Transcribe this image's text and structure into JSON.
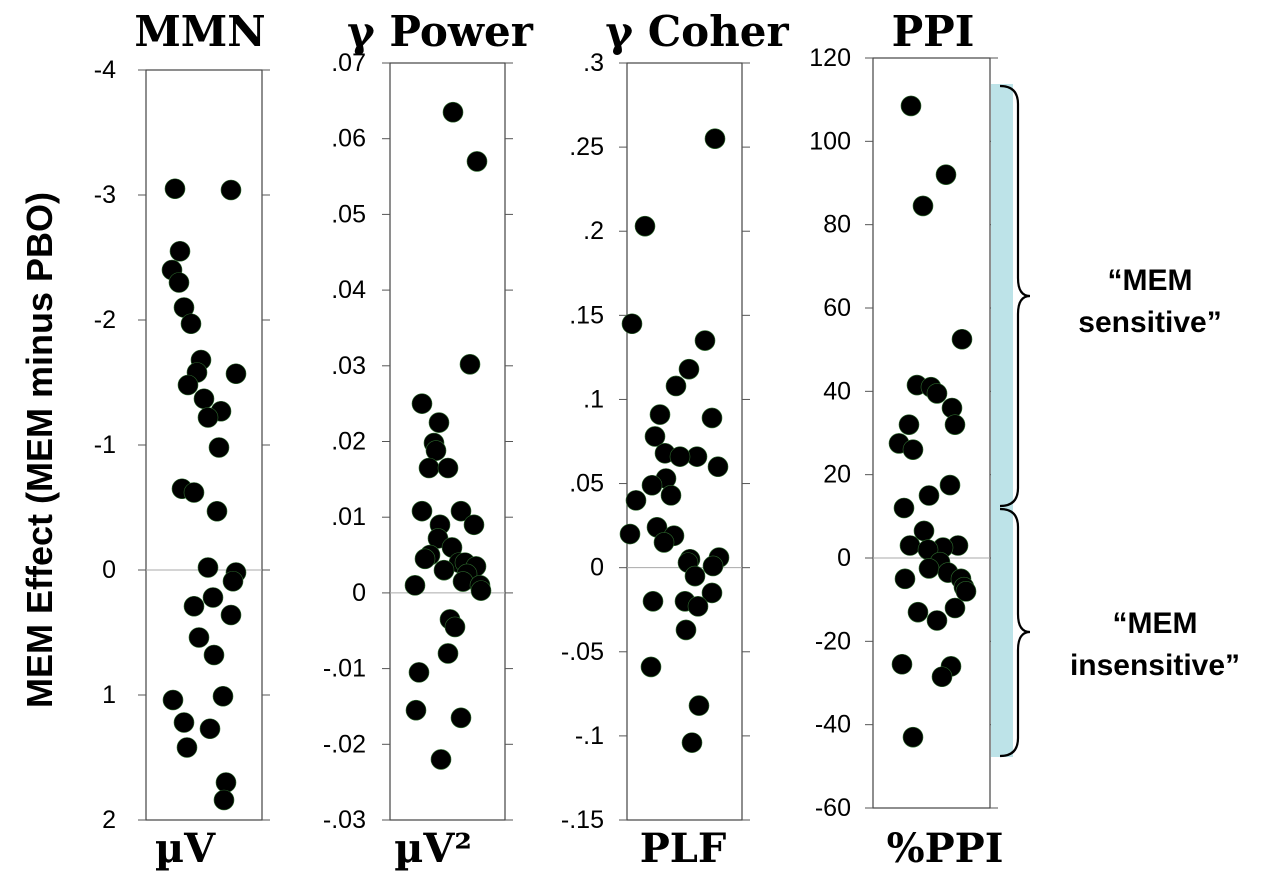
{
  "ylabel": "MEM Effect (MEM minus PBO)",
  "annotations": {
    "sensitive_line1": "“MEM",
    "sensitive_line2": "sensitive”",
    "insensitive_line1": "“MEM",
    "insensitive_line2": "insensitive”",
    "band_color": "#bde3e8"
  },
  "chart_data": [
    {
      "type": "scatter",
      "title": "MMN",
      "xlabel": "µV",
      "ylim": [
        2,
        -4
      ],
      "inverted_y": true,
      "yticks": [
        -4,
        -3,
        -2,
        -1,
        0,
        1,
        2
      ],
      "ytick_labels": [
        "-4",
        "-3",
        "-2",
        "-1",
        "0",
        "1",
        "2"
      ],
      "values": [
        -3.05,
        -3.04,
        -2.55,
        -2.4,
        -2.3,
        -2.1,
        -1.97,
        -1.68,
        -1.58,
        -1.57,
        -1.48,
        -1.37,
        -1.27,
        -1.22,
        -0.98,
        -0.65,
        -0.62,
        -0.47,
        0.02,
        -0.02,
        0.09,
        0.22,
        0.29,
        0.36,
        0.54,
        0.68,
        1.01,
        1.04,
        1.22,
        1.27,
        1.42,
        1.7,
        1.84
      ]
    },
    {
      "type": "scatter",
      "title": "γ Power",
      "xlabel": "µV²",
      "ylim": [
        -0.03,
        0.07
      ],
      "yticks": [
        -0.03,
        -0.02,
        -0.01,
        0,
        0.01,
        0.02,
        0.03,
        0.04,
        0.05,
        0.06,
        0.07
      ],
      "ytick_labels": [
        "-.03",
        "-.02",
        "-.01",
        "0",
        ".01",
        ".02",
        ".03",
        ".04",
        ".05",
        ".06",
        ".07"
      ],
      "values": [
        0.0635,
        0.057,
        0.0302,
        0.025,
        0.0225,
        0.0198,
        0.0188,
        0.0165,
        0.0165,
        0.0108,
        0.0108,
        0.009,
        0.009,
        0.0072,
        0.006,
        0.005,
        0.0045,
        0.004,
        0.004,
        0.0035,
        0.003,
        0.0025,
        0.0015,
        0.001,
        0.001,
        0.0003,
        -0.0035,
        -0.0045,
        -0.008,
        -0.0105,
        -0.0155,
        -0.0165,
        -0.022
      ]
    },
    {
      "type": "scatter",
      "title": "γ Coher",
      "xlabel": "PLF",
      "ylim": [
        -0.15,
        0.3
      ],
      "yticks": [
        -0.15,
        -0.1,
        -0.05,
        0,
        0.05,
        0.1,
        0.15,
        0.2,
        0.25,
        0.3
      ],
      "ytick_labels": [
        "-.15",
        "-.1",
        "-.05",
        "0",
        ".05",
        ".1",
        ".15",
        ".2",
        ".25",
        ".3"
      ],
      "values": [
        0.255,
        0.203,
        0.145,
        0.135,
        0.118,
        0.108,
        0.091,
        0.089,
        0.078,
        0.068,
        0.066,
        0.066,
        0.06,
        0.053,
        0.049,
        0.043,
        0.04,
        0.024,
        0.02,
        0.019,
        0.015,
        0.006,
        0.005,
        0.003,
        0.001,
        -0.005,
        -0.015,
        -0.02,
        -0.02,
        -0.023,
        -0.037,
        -0.059,
        -0.082,
        -0.104
      ]
    },
    {
      "type": "scatter",
      "title": "PPI",
      "xlabel": "%PPI",
      "ylim": [
        -60,
        120
      ],
      "yticks": [
        -60,
        -40,
        -20,
        0,
        20,
        40,
        60,
        80,
        100,
        120
      ],
      "ytick_labels": [
        "-60",
        "-40",
        "-20",
        "0",
        "20",
        "40",
        "60",
        "80",
        "100",
        "120"
      ],
      "values": [
        108.5,
        92,
        84.5,
        52.5,
        41.5,
        41,
        39.5,
        36,
        32,
        32,
        27.5,
        26,
        17.5,
        15,
        12,
        6.5,
        3,
        3,
        2.5,
        2,
        -1,
        -2.5,
        -3.5,
        -5,
        -5,
        -7,
        -8,
        -12,
        -13,
        -15,
        -25.5,
        -26,
        -28.5,
        -43
      ]
    }
  ]
}
